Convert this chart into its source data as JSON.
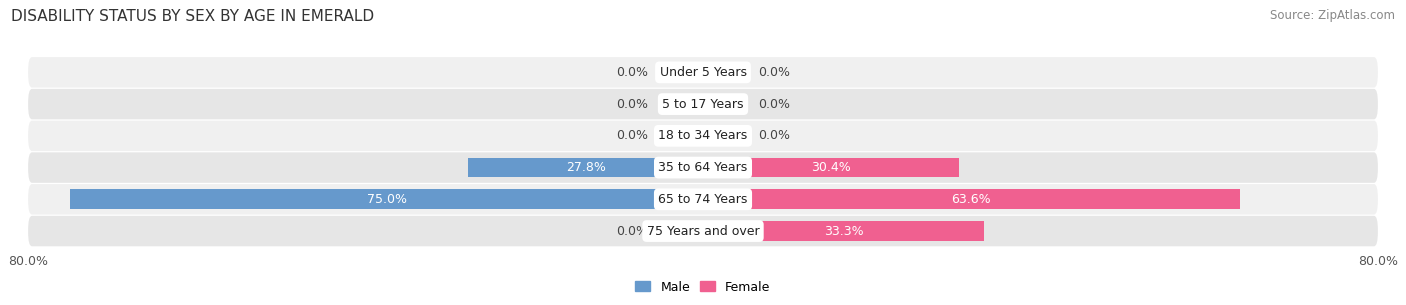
{
  "title": "DISABILITY STATUS BY SEX BY AGE IN EMERALD",
  "source": "Source: ZipAtlas.com",
  "categories": [
    "Under 5 Years",
    "5 to 17 Years",
    "18 to 34 Years",
    "35 to 64 Years",
    "65 to 74 Years",
    "75 Years and over"
  ],
  "male_values": [
    0.0,
    0.0,
    0.0,
    27.8,
    75.0,
    0.0
  ],
  "female_values": [
    0.0,
    0.0,
    0.0,
    30.4,
    63.6,
    33.3
  ],
  "male_color_full": "#6699cc",
  "male_color_zero": "#adc8e0",
  "female_color_full": "#f06090",
  "female_color_zero": "#f4b8cc",
  "row_bg_odd": "#f0f0f0",
  "row_bg_even": "#e6e6e6",
  "max_val": 80.0,
  "bar_height": 0.62,
  "zero_stub": 5.0,
  "title_fontsize": 11,
  "label_fontsize": 9,
  "cat_fontsize": 9,
  "tick_fontsize": 9,
  "source_fontsize": 8.5
}
